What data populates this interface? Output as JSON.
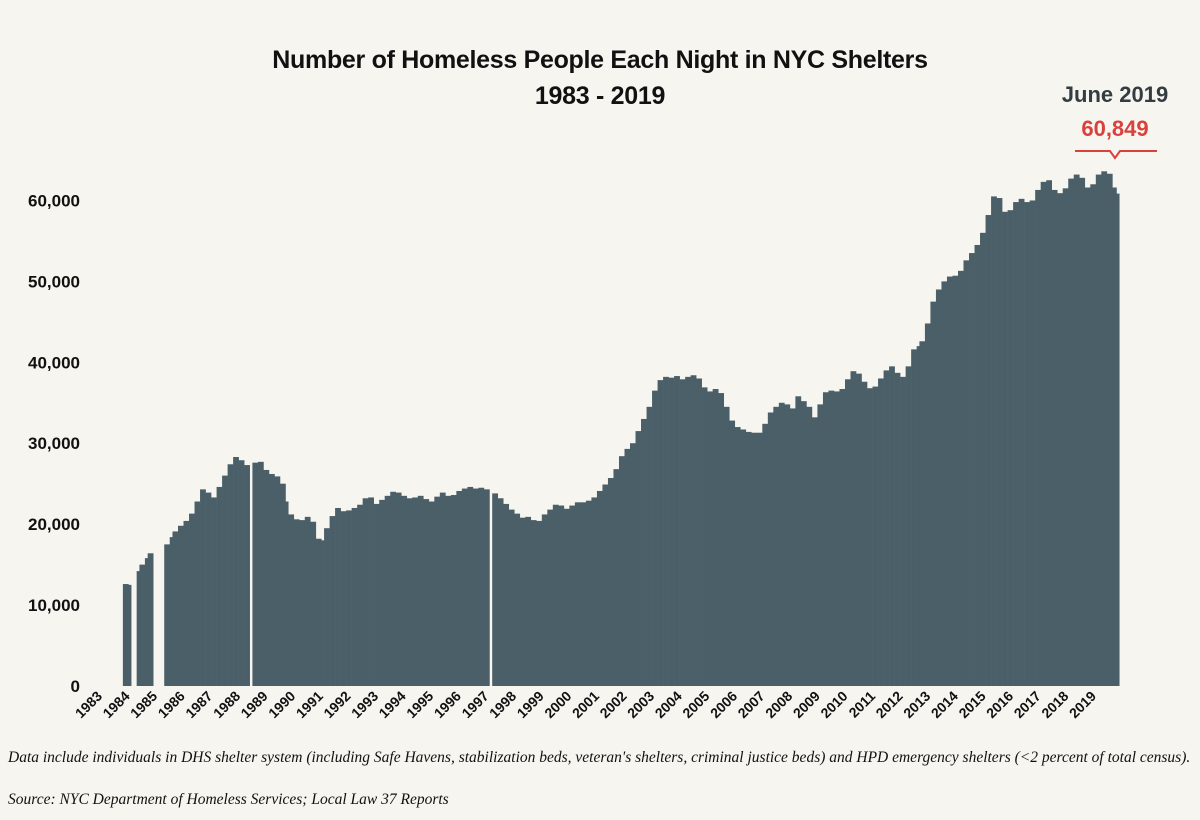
{
  "title_line1": "Number of Homeless People Each Night in NYC Shelters",
  "title_line2": "1983 - 2019",
  "callout": {
    "date": "June 2019",
    "value": "60,849"
  },
  "footnote": "Data include individuals in DHS shelter system (including Safe Havens, stabilization beds, veteran's shelters, criminal justice beds) and HPD emergency shelters (<2 percent of total census).",
  "source": "Source:  NYC Department of Homeless Services; Local Law 37 Reports",
  "colors": {
    "bar": "#4a5f68",
    "callout": "#d9413c",
    "background": "#f7f5f0"
  },
  "chart_data": {
    "type": "bar",
    "ylim": [
      0,
      65000
    ],
    "yticks": [
      0,
      10000,
      20000,
      30000,
      40000,
      50000,
      60000
    ],
    "ytick_labels": [
      "0",
      "10,000",
      "20,000",
      "30,000",
      "40,000",
      "50,000",
      "60,000"
    ],
    "xtick_labels": [
      "1983",
      "1984",
      "1985",
      "1986",
      "1987",
      "1988",
      "1989",
      "1990",
      "1991",
      "1992",
      "1993",
      "1994",
      "1995",
      "1996",
      "1997",
      "1998",
      "1999",
      "2000",
      "2001",
      "2002",
      "2003",
      "2004",
      "2005",
      "2006",
      "2007",
      "2008",
      "2009",
      "2010",
      "2011",
      "2012",
      "2013",
      "2014",
      "2015",
      "2016",
      "2017",
      "2018",
      "2019"
    ],
    "x_start": 1983.0,
    "x_end": 2019.5,
    "series": [
      {
        "values": [
          [
            1983.5,
            12600
          ],
          [
            1983.6,
            12500
          ],
          [
            1984.0,
            14200
          ],
          [
            1984.1,
            15000
          ],
          [
            1984.3,
            15800
          ],
          [
            1984.4,
            16400
          ],
          [
            1985.0,
            17500
          ],
          [
            1985.2,
            18400
          ],
          [
            1985.3,
            19100
          ],
          [
            1985.5,
            19800
          ],
          [
            1985.7,
            20400
          ],
          [
            1985.9,
            21300
          ],
          [
            1986.1,
            22800
          ],
          [
            1986.3,
            24300
          ],
          [
            1986.5,
            23900
          ],
          [
            1986.7,
            23300
          ],
          [
            1986.9,
            24600
          ],
          [
            1987.1,
            26000
          ],
          [
            1987.3,
            27400
          ],
          [
            1987.5,
            28300
          ],
          [
            1987.7,
            27900
          ],
          [
            1987.9,
            27300
          ],
          [
            1988.2,
            27600
          ],
          [
            1988.4,
            27700
          ],
          [
            1988.6,
            26700
          ],
          [
            1988.8,
            26200
          ],
          [
            1989.0,
            25900
          ],
          [
            1989.2,
            25000
          ],
          [
            1989.3,
            22800
          ],
          [
            1989.5,
            21200
          ],
          [
            1989.7,
            20600
          ],
          [
            1989.9,
            20500
          ],
          [
            1990.1,
            20900
          ],
          [
            1990.3,
            20300
          ],
          [
            1990.5,
            18200
          ],
          [
            1990.6,
            18000
          ],
          [
            1990.8,
            19500
          ],
          [
            1991.0,
            21000
          ],
          [
            1991.2,
            22000
          ],
          [
            1991.4,
            21600
          ],
          [
            1991.6,
            21700
          ],
          [
            1991.8,
            22000
          ],
          [
            1992.0,
            22400
          ],
          [
            1992.2,
            23200
          ],
          [
            1992.4,
            23300
          ],
          [
            1992.6,
            22500
          ],
          [
            1992.8,
            23000
          ],
          [
            1993.0,
            23500
          ],
          [
            1993.2,
            24000
          ],
          [
            1993.4,
            23900
          ],
          [
            1993.6,
            23500
          ],
          [
            1993.8,
            23200
          ],
          [
            1994.0,
            23300
          ],
          [
            1994.2,
            23500
          ],
          [
            1994.4,
            23100
          ],
          [
            1994.6,
            22800
          ],
          [
            1994.8,
            23400
          ],
          [
            1995.0,
            23900
          ],
          [
            1995.2,
            23500
          ],
          [
            1995.4,
            23600
          ],
          [
            1995.6,
            24100
          ],
          [
            1995.8,
            24400
          ],
          [
            1996.0,
            24600
          ],
          [
            1996.2,
            24400
          ],
          [
            1996.4,
            24500
          ],
          [
            1996.6,
            24300
          ],
          [
            1996.9,
            23800
          ],
          [
            1997.1,
            23200
          ],
          [
            1997.3,
            22500
          ],
          [
            1997.5,
            21800
          ],
          [
            1997.7,
            21300
          ],
          [
            1997.9,
            20800
          ],
          [
            1998.1,
            20900
          ],
          [
            1998.3,
            20500
          ],
          [
            1998.5,
            20400
          ],
          [
            1998.7,
            21200
          ],
          [
            1998.9,
            21800
          ],
          [
            1999.1,
            22400
          ],
          [
            1999.3,
            22300
          ],
          [
            1999.5,
            21900
          ],
          [
            1999.7,
            22300
          ],
          [
            1999.9,
            22700
          ],
          [
            2000.1,
            22700
          ],
          [
            2000.3,
            22900
          ],
          [
            2000.5,
            23300
          ],
          [
            2000.7,
            24100
          ],
          [
            2000.9,
            24900
          ],
          [
            2001.1,
            25700
          ],
          [
            2001.3,
            26800
          ],
          [
            2001.5,
            28400
          ],
          [
            2001.7,
            29300
          ],
          [
            2001.9,
            30000
          ],
          [
            2002.1,
            31500
          ],
          [
            2002.3,
            33000
          ],
          [
            2002.5,
            34500
          ],
          [
            2002.7,
            36500
          ],
          [
            2002.9,
            37800
          ],
          [
            2003.1,
            38200
          ],
          [
            2003.3,
            38100
          ],
          [
            2003.5,
            38300
          ],
          [
            2003.7,
            37900
          ],
          [
            2003.9,
            38200
          ],
          [
            2004.1,
            38400
          ],
          [
            2004.3,
            38000
          ],
          [
            2004.5,
            36900
          ],
          [
            2004.7,
            36400
          ],
          [
            2004.9,
            36700
          ],
          [
            2005.1,
            36200
          ],
          [
            2005.3,
            34500
          ],
          [
            2005.5,
            32800
          ],
          [
            2005.7,
            32000
          ],
          [
            2005.9,
            31700
          ],
          [
            2006.1,
            31400
          ],
          [
            2006.3,
            31300
          ],
          [
            2006.5,
            31300
          ],
          [
            2006.7,
            32400
          ],
          [
            2006.9,
            33800
          ],
          [
            2007.1,
            34500
          ],
          [
            2007.3,
            35000
          ],
          [
            2007.5,
            34800
          ],
          [
            2007.7,
            34300
          ],
          [
            2007.9,
            35800
          ],
          [
            2008.1,
            35200
          ],
          [
            2008.3,
            34500
          ],
          [
            2008.5,
            33200
          ],
          [
            2008.7,
            34800
          ],
          [
            2008.9,
            36300
          ],
          [
            2009.1,
            36500
          ],
          [
            2009.3,
            36400
          ],
          [
            2009.5,
            36700
          ],
          [
            2009.7,
            37900
          ],
          [
            2009.9,
            38900
          ],
          [
            2010.1,
            38600
          ],
          [
            2010.3,
            37600
          ],
          [
            2010.5,
            36800
          ],
          [
            2010.7,
            37000
          ],
          [
            2010.9,
            38000
          ],
          [
            2011.1,
            39000
          ],
          [
            2011.3,
            39500
          ],
          [
            2011.5,
            38700
          ],
          [
            2011.7,
            38200
          ],
          [
            2011.9,
            39500
          ],
          [
            2012.1,
            41600
          ],
          [
            2012.3,
            42000
          ],
          [
            2012.4,
            42600
          ],
          [
            2012.6,
            44800
          ],
          [
            2012.8,
            47500
          ],
          [
            2013.0,
            49000
          ],
          [
            2013.2,
            50000
          ],
          [
            2013.4,
            50600
          ],
          [
            2013.6,
            50700
          ],
          [
            2013.8,
            51300
          ],
          [
            2014.0,
            52600
          ],
          [
            2014.2,
            53500
          ],
          [
            2014.4,
            54500
          ],
          [
            2014.6,
            56000
          ],
          [
            2014.8,
            58200
          ],
          [
            2015.0,
            60500
          ],
          [
            2015.2,
            60300
          ],
          [
            2015.4,
            58600
          ],
          [
            2015.6,
            58800
          ],
          [
            2015.8,
            59800
          ],
          [
            2016.0,
            60200
          ],
          [
            2016.2,
            59800
          ],
          [
            2016.4,
            60000
          ],
          [
            2016.6,
            61300
          ],
          [
            2016.8,
            62300
          ],
          [
            2017.0,
            62500
          ],
          [
            2017.2,
            61300
          ],
          [
            2017.4,
            60900
          ],
          [
            2017.6,
            61500
          ],
          [
            2017.8,
            62700
          ],
          [
            2018.0,
            63200
          ],
          [
            2018.2,
            62800
          ],
          [
            2018.4,
            61600
          ],
          [
            2018.6,
            62000
          ],
          [
            2018.8,
            63200
          ],
          [
            2019.0,
            63600
          ],
          [
            2019.2,
            63300
          ],
          [
            2019.35,
            61600
          ],
          [
            2019.45,
            60849
          ]
        ]
      }
    ]
  }
}
